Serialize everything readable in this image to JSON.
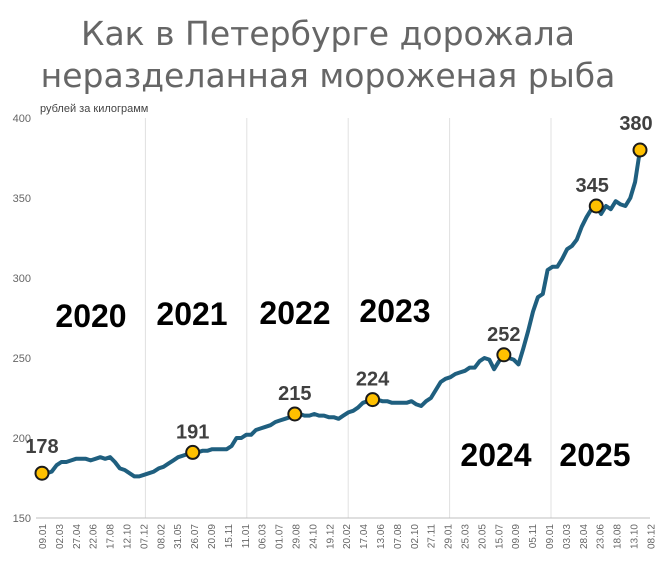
{
  "chart_data": {
    "type": "line",
    "title_lines": [
      "Как в Петербурге дорожала",
      "неразделанная мороженая рыба"
    ],
    "unit_label": "рублей за килограмм",
    "ylim": [
      150,
      400
    ],
    "y_ticks": [
      150,
      200,
      250,
      300,
      350,
      400
    ],
    "grid": {
      "x": true,
      "y": false
    },
    "x_tick_labels": [
      "09.01",
      "02.03",
      "27.04",
      "22.06",
      "17.08",
      "12.10",
      "07.12",
      "08.02",
      "31.05",
      "26.07",
      "20.09",
      "15.11",
      "11.01",
      "06.03",
      "01.07",
      "29.08",
      "24.10",
      "19.12",
      "20.02",
      "17.04",
      "13.06",
      "07.08",
      "02.10",
      "27.11",
      "29.01",
      "25.03",
      "20.05",
      "15.07",
      "09.09",
      "05.11",
      "09.01",
      "03.03",
      "28.04",
      "23.06",
      "18.08",
      "13.10",
      "08.12"
    ],
    "year_labels": [
      "2020",
      "2021",
      "2022",
      "2023",
      "2024",
      "2025"
    ],
    "series": [
      {
        "color": "#1f5f7f",
        "values": [
          178,
          178,
          179,
          183,
          185,
          185,
          186,
          187,
          187,
          187,
          186,
          187,
          188,
          187,
          188,
          185,
          181,
          180,
          178,
          176,
          176,
          177,
          178,
          179,
          181,
          182,
          184,
          186,
          188,
          189,
          190,
          191,
          191,
          192,
          192,
          193,
          193,
          193,
          193,
          195,
          200,
          200,
          202,
          202,
          205,
          206,
          207,
          208,
          210,
          211,
          212,
          213,
          215,
          215,
          214,
          214,
          215,
          214,
          214,
          213,
          213,
          212,
          214,
          216,
          217,
          219,
          222,
          223,
          224,
          224,
          223,
          223,
          222,
          222,
          222,
          222,
          223,
          221,
          220,
          223,
          225,
          230,
          235,
          237,
          238,
          240,
          241,
          242,
          244,
          244,
          248,
          250,
          249,
          243,
          248,
          252,
          250,
          249,
          246,
          256,
          267,
          279,
          288,
          290,
          305,
          307,
          307,
          312,
          318,
          320,
          324,
          332,
          338,
          343,
          345,
          340,
          345,
          343,
          348,
          346,
          345,
          350,
          360,
          380
        ],
        "markers": [
          {
            "index": 0,
            "value": 178,
            "label": "178"
          },
          {
            "index": 31,
            "value": 191,
            "label": "191"
          },
          {
            "index": 52,
            "value": 215,
            "label": "215"
          },
          {
            "index": 68,
            "value": 224,
            "label": "224"
          },
          {
            "index": 95,
            "value": 252,
            "label": "252"
          },
          {
            "index": 114,
            "value": 345,
            "label": "345"
          },
          {
            "index": 123,
            "value": 380,
            "label": "380"
          }
        ]
      }
    ],
    "marker_fill": "#ffc000"
  }
}
